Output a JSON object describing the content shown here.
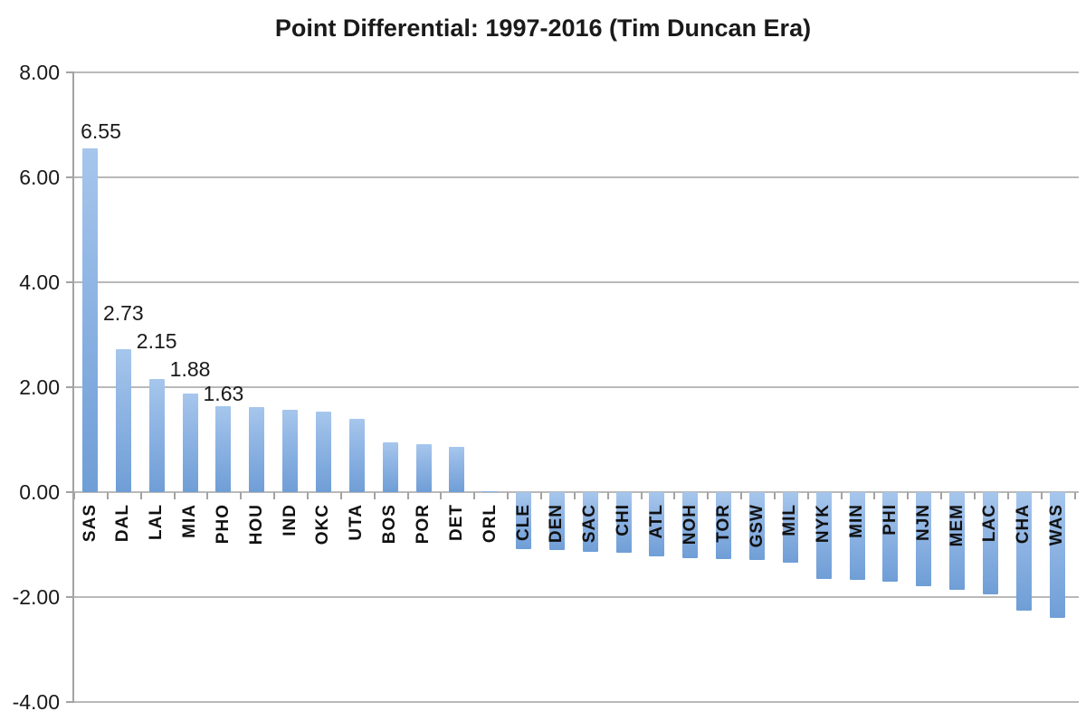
{
  "chart_data": {
    "type": "bar",
    "title": "Point Differential: 1997-2016 (Tim Duncan Era)",
    "categories": [
      "SAS",
      "DAL",
      "LAL",
      "MIA",
      "PHO",
      "HOU",
      "IND",
      "OKC",
      "UTA",
      "BOS",
      "POR",
      "DET",
      "ORL",
      "CLE",
      "DEN",
      "SAC",
      "CHI",
      "ATL",
      "NOH",
      "TOR",
      "GSW",
      "MIL",
      "NYK",
      "MIN",
      "PHI",
      "NJN",
      "MEM",
      "LAC",
      "CHA",
      "WAS"
    ],
    "values": [
      6.55,
      2.73,
      2.15,
      1.88,
      1.63,
      1.62,
      1.57,
      1.53,
      1.4,
      0.94,
      0.91,
      0.86,
      0.02,
      -1.08,
      -1.11,
      -1.13,
      -1.16,
      -1.22,
      -1.25,
      -1.28,
      -1.3,
      -1.35,
      -1.65,
      -1.68,
      -1.71,
      -1.8,
      -1.86,
      -1.94,
      -2.25,
      -2.4
    ],
    "data_labels": [
      "6.55",
      "2.73",
      "2.15",
      "1.88",
      "1.63"
    ],
    "yticks": {
      "values": [
        8,
        6,
        4,
        2,
        0,
        -2,
        -4
      ],
      "labels": [
        "8.00",
        "6.00",
        "4.00",
        "2.00",
        "0.00",
        "-2.00",
        "-4.00"
      ]
    },
    "ylim": [
      -4,
      8
    ],
    "grid": true,
    "legend": "none",
    "xlabel": "",
    "ylabel": "",
    "colors": {
      "bar_top": "#a6c6ec",
      "bar_bottom": "#6f9ed6",
      "gridline": "#b9b9b9",
      "axis": "#a3a3a3",
      "text": "#1a1a1a"
    }
  }
}
